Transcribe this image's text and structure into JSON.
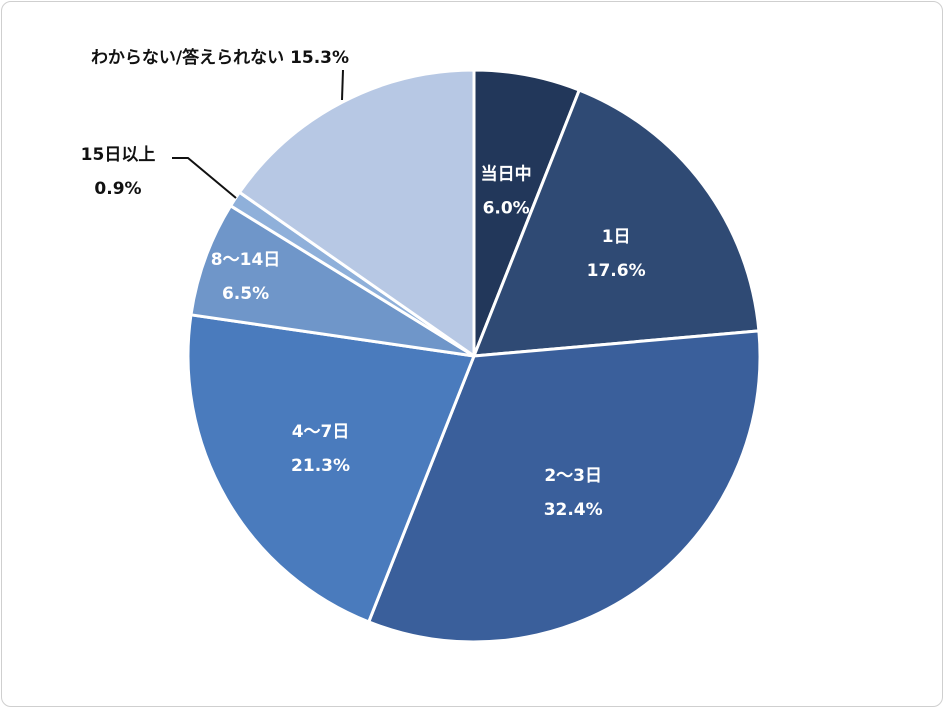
{
  "chart_data": {
    "type": "pie",
    "title": "",
    "slices": [
      {
        "label": "当日中",
        "value": 6.0,
        "value_label": "6.0%",
        "color": "#22375a"
      },
      {
        "label": "1日",
        "value": 17.6,
        "value_label": "17.6%",
        "color": "#2f4a74"
      },
      {
        "label": "2～3日",
        "value": 32.4,
        "value_label": "32.4%",
        "color": "#3a5f9b"
      },
      {
        "label": "4～7日",
        "value": 21.3,
        "value_label": "21.3%",
        "color": "#4a7bbd"
      },
      {
        "label": "8～14日",
        "value": 6.5,
        "value_label": "6.5%",
        "color": "#6f96c9"
      },
      {
        "label": "15日以上",
        "value": 0.9,
        "value_label": "0.9%",
        "color": "#8fb0da"
      },
      {
        "label": "わからない/答えられない",
        "value": 15.3,
        "value_label": "15.3%",
        "color": "#b7c8e4"
      }
    ],
    "label_color_inside": "#ffffff",
    "label_color_outside": "#111111"
  }
}
